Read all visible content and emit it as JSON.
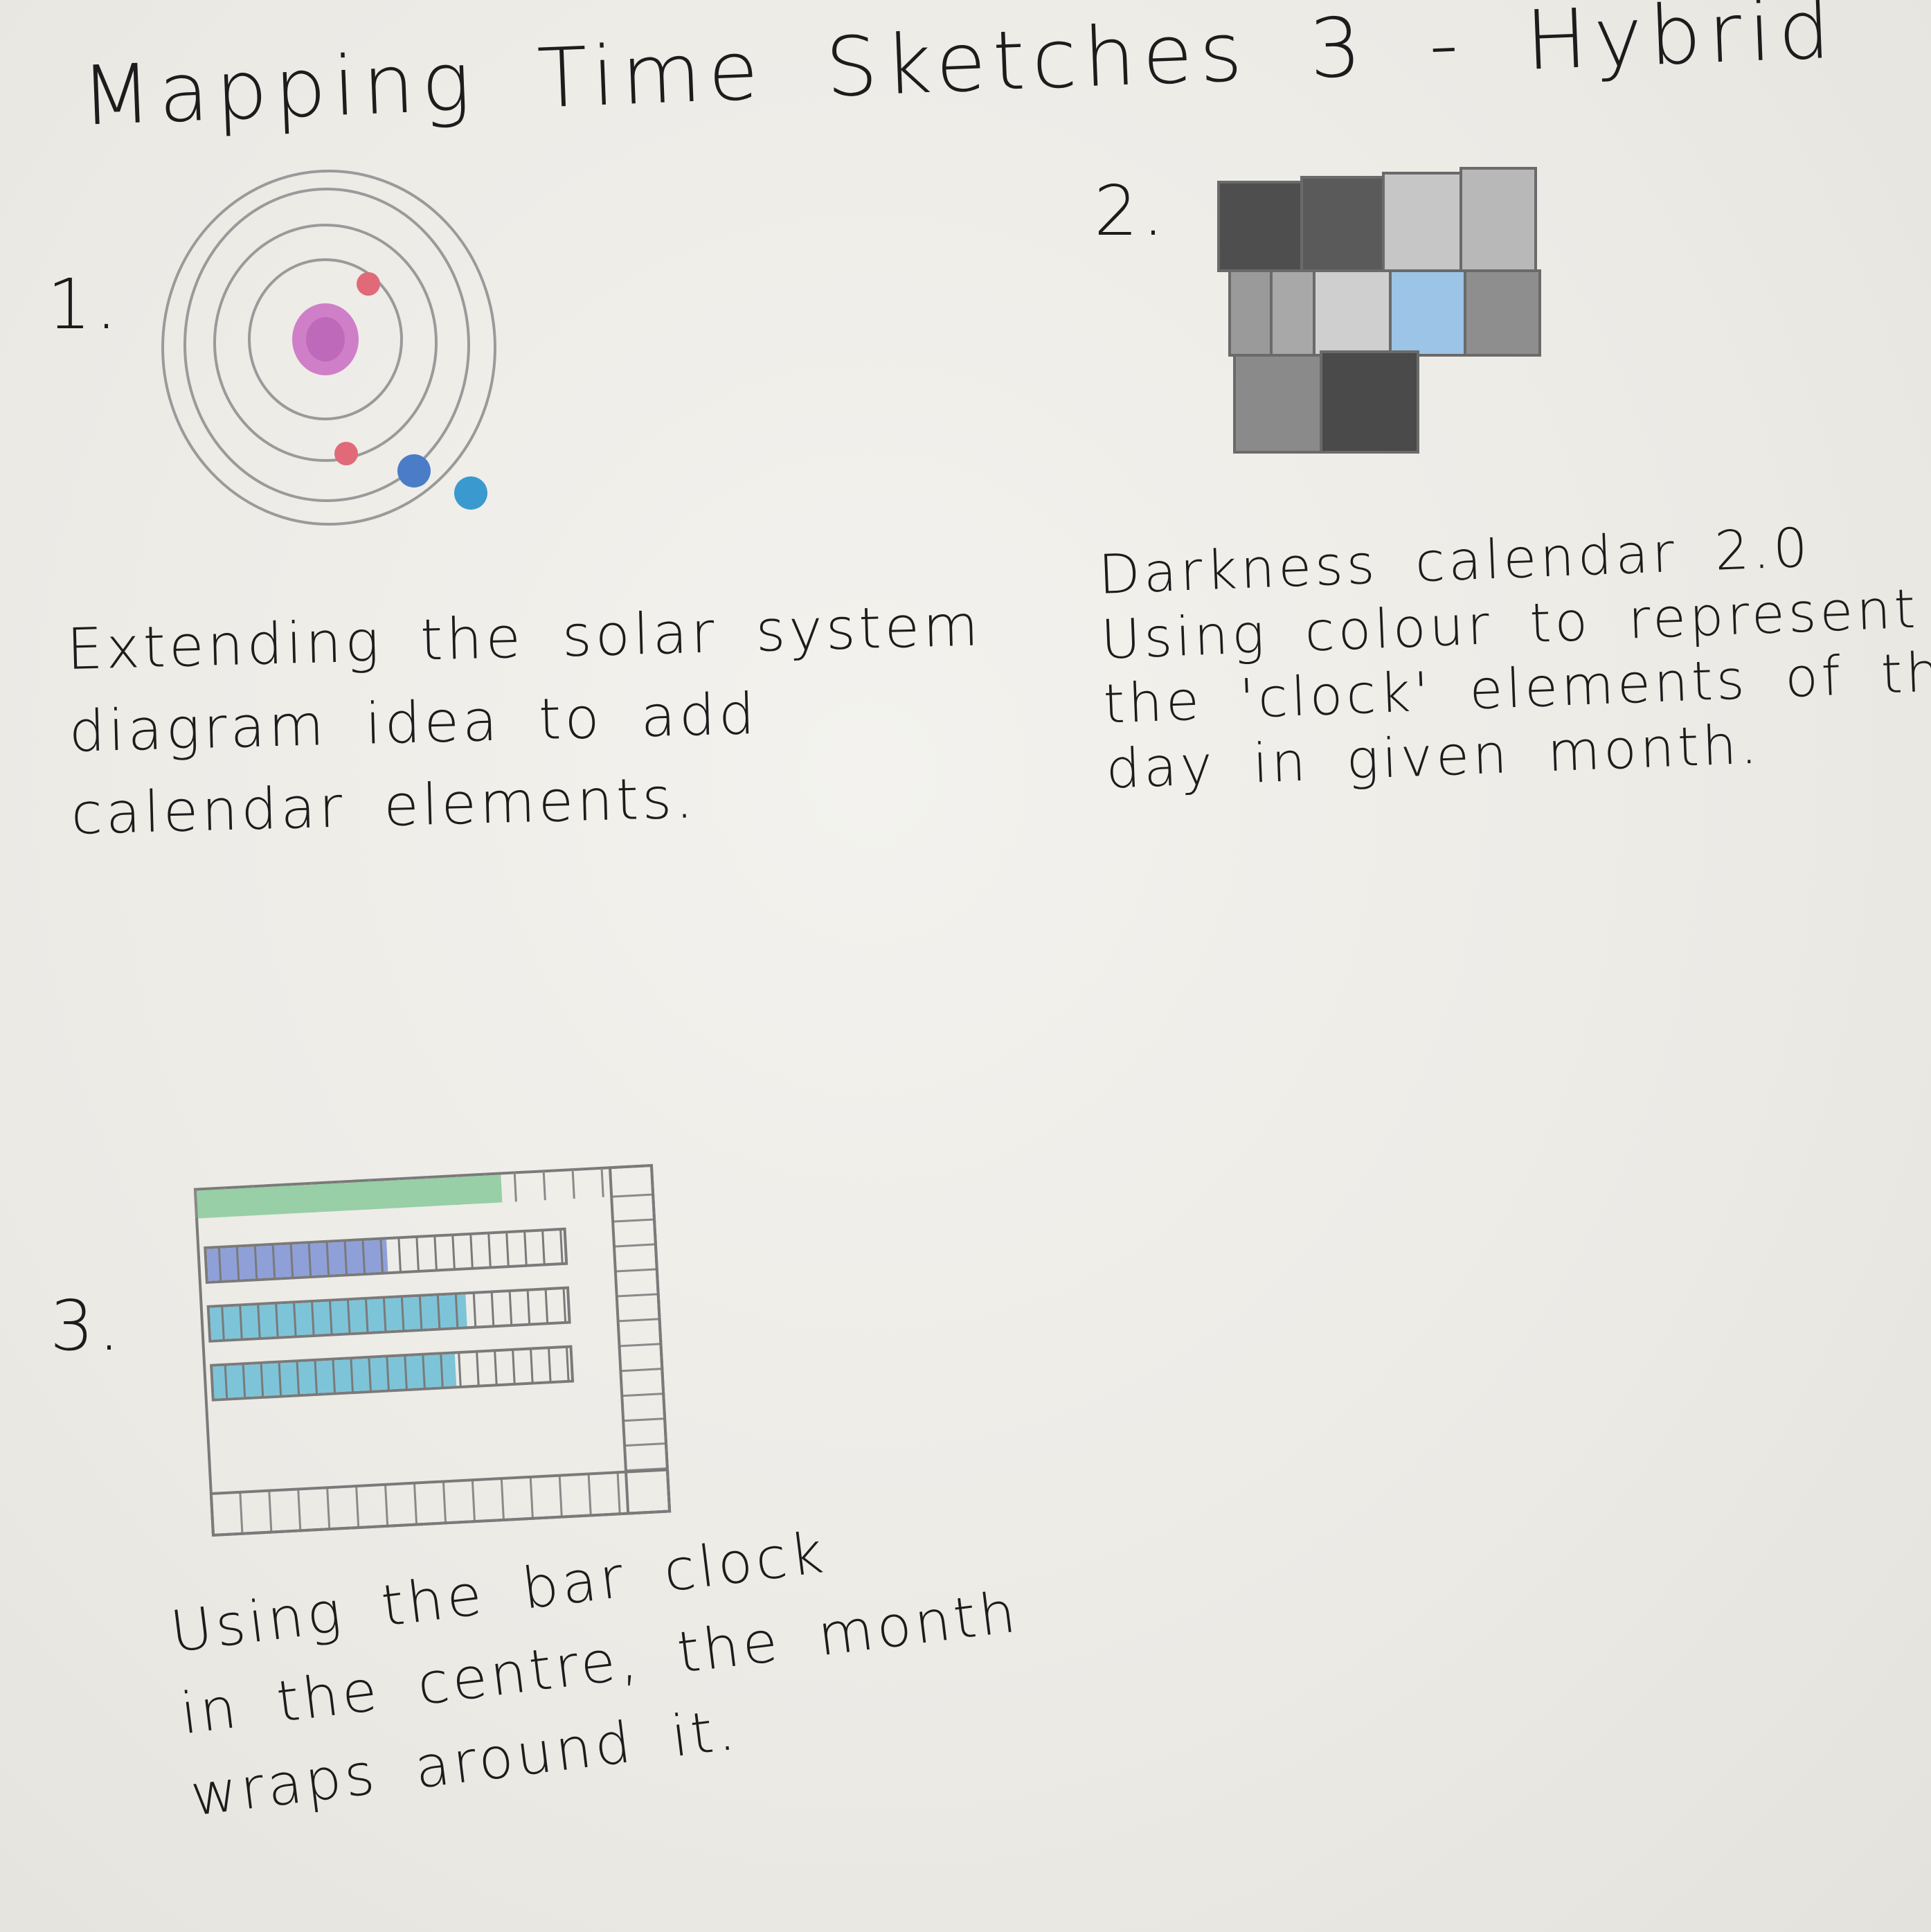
{
  "title": "Mapping Time Sketches 3 - Hybrid",
  "sketches": [
    {
      "number": "1.",
      "caption_lines": [
        "Extending the solar system",
        "diagram idea to add",
        "calendar elements."
      ],
      "colors": {
        "sun": "#c86cc2",
        "planet_red": "#e06a78",
        "planet_blue": "#4a7cc8",
        "planet_teal": "#3a9ad0",
        "orbit": "#9a9a9a"
      }
    },
    {
      "number": "2.",
      "caption_lines": [
        "Darkness calendar 2.0",
        "Using colour to represent",
        "the 'clock' elements of the",
        "day in given month."
      ],
      "colors": {
        "dark": "#5a5a5a",
        "mid": "#8c8c8c",
        "light": "#c4c4c4",
        "blue": "#9cc4e6"
      }
    },
    {
      "number": "3.",
      "caption_lines": [
        "Using the bar clock",
        "in the centre, the month",
        "wraps around it."
      ],
      "colors": {
        "green": "#98cfa6",
        "indigo": "#8fa0d8",
        "teal": "#7ec4d8",
        "outline": "#7a7a7a"
      }
    }
  ]
}
